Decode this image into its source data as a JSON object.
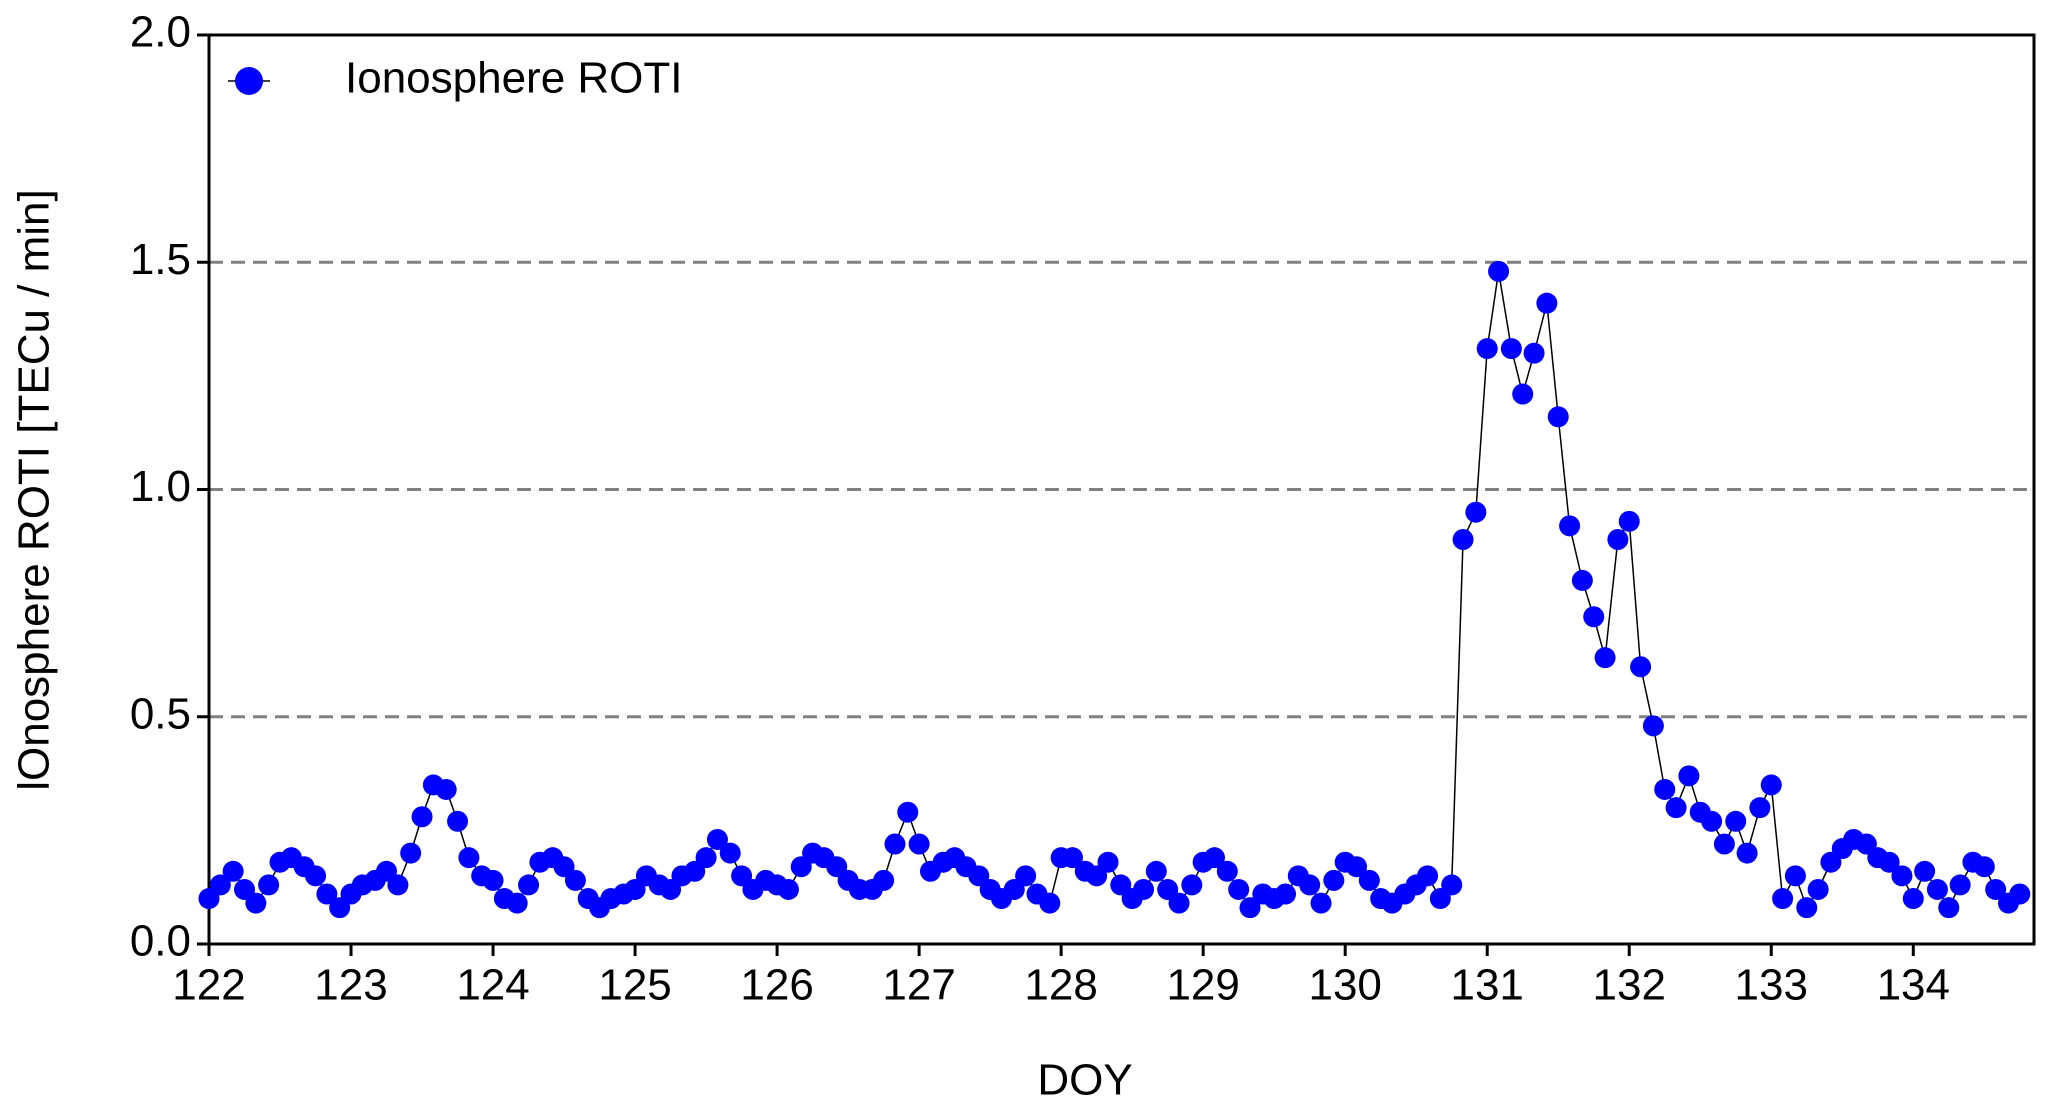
{
  "chart_data": {
    "type": "line",
    "x_label": "DOY",
    "y_label": "lOnosphere ROTI [TECu / min]",
    "xlim": [
      122,
      134.85
    ],
    "ylim": [
      0,
      2.0
    ],
    "xticks": [
      122,
      123,
      124,
      125,
      126,
      127,
      128,
      129,
      130,
      131,
      132,
      133,
      134
    ],
    "yticks": [
      {
        "value": 0,
        "label": "0.0"
      },
      0.5,
      {
        "value": 1,
        "label": "1.0"
      },
      1.5,
      {
        "value": 2,
        "label": "2.0"
      }
    ],
    "grid": true,
    "legend": "upper left",
    "series": [
      {
        "name": "Ionosphere ROTI",
        "color": "#0000ff",
        "x": [
          122.0,
          122.08,
          122.17,
          122.25,
          122.33,
          122.42,
          122.5,
          122.58,
          122.67,
          122.75,
          122.83,
          122.92,
          123.0,
          123.08,
          123.17,
          123.25,
          123.33,
          123.42,
          123.5,
          123.58,
          123.67,
          123.75,
          123.83,
          123.92,
          124.0,
          124.08,
          124.17,
          124.25,
          124.33,
          124.42,
          124.5,
          124.58,
          124.67,
          124.75,
          124.83,
          124.92,
          125.0,
          125.08,
          125.17,
          125.25,
          125.33,
          125.42,
          125.5,
          125.58,
          125.67,
          125.75,
          125.83,
          125.92,
          126.0,
          126.08,
          126.17,
          126.25,
          126.33,
          126.42,
          126.5,
          126.58,
          126.67,
          126.75,
          126.83,
          126.92,
          127.0,
          127.08,
          127.17,
          127.25,
          127.33,
          127.42,
          127.5,
          127.58,
          127.67,
          127.75,
          127.83,
          127.92,
          128.0,
          128.08,
          128.17,
          128.25,
          128.33,
          128.42,
          128.5,
          128.58,
          128.67,
          128.75,
          128.83,
          128.92,
          129.0,
          129.08,
          129.17,
          129.25,
          129.33,
          129.42,
          129.5,
          129.58,
          129.67,
          129.75,
          129.83,
          129.92,
          130.0,
          130.08,
          130.17,
          130.25,
          130.33,
          130.42,
          130.5,
          130.58,
          130.67,
          130.75,
          130.83,
          130.92,
          131.0,
          131.08,
          131.17,
          131.25,
          131.33,
          131.42,
          131.5,
          131.58,
          131.67,
          131.75,
          131.83,
          131.92,
          132.0,
          132.08,
          132.17,
          132.25,
          132.33,
          132.42,
          132.5,
          132.58,
          132.67,
          132.75,
          132.83,
          132.92,
          133.0,
          133.08,
          133.17,
          133.25,
          133.33,
          133.42,
          133.5,
          133.58,
          133.67,
          133.75,
          133.83,
          133.92,
          134.0,
          134.08,
          134.17,
          134.25,
          134.33,
          134.42,
          134.5,
          134.58,
          134.67,
          134.75
        ],
        "values": [
          0.1,
          0.13,
          0.16,
          0.12,
          0.09,
          0.13,
          0.18,
          0.19,
          0.17,
          0.15,
          0.11,
          0.08,
          0.11,
          0.13,
          0.14,
          0.16,
          0.13,
          0.2,
          0.28,
          0.35,
          0.34,
          0.27,
          0.19,
          0.15,
          0.14,
          0.1,
          0.09,
          0.13,
          0.18,
          0.19,
          0.17,
          0.14,
          0.1,
          0.08,
          0.1,
          0.11,
          0.12,
          0.15,
          0.13,
          0.12,
          0.15,
          0.16,
          0.19,
          0.23,
          0.2,
          0.15,
          0.12,
          0.14,
          0.13,
          0.12,
          0.17,
          0.2,
          0.19,
          0.17,
          0.14,
          0.12,
          0.12,
          0.14,
          0.22,
          0.29,
          0.22,
          0.16,
          0.18,
          0.19,
          0.17,
          0.15,
          0.12,
          0.1,
          0.12,
          0.15,
          0.11,
          0.09,
          0.19,
          0.19,
          0.16,
          0.15,
          0.18,
          0.13,
          0.1,
          0.12,
          0.16,
          0.12,
          0.09,
          0.13,
          0.18,
          0.19,
          0.16,
          0.12,
          0.08,
          0.11,
          0.1,
          0.11,
          0.15,
          0.13,
          0.09,
          0.14,
          0.18,
          0.17,
          0.14,
          0.1,
          0.09,
          0.11,
          0.13,
          0.15,
          0.1,
          0.13,
          0.89,
          0.95,
          1.31,
          1.48,
          1.31,
          1.21,
          1.3,
          1.41,
          1.16,
          0.92,
          0.8,
          0.72,
          0.63,
          0.89,
          0.93,
          0.61,
          0.48,
          0.34,
          0.3,
          0.37,
          0.29,
          0.27,
          0.22,
          0.27,
          0.2,
          0.3,
          0.35,
          0.1,
          0.15,
          0.08,
          0.12,
          0.18,
          0.21,
          0.23,
          0.22,
          0.19,
          0.18,
          0.15,
          0.1,
          0.16,
          0.12,
          0.08,
          0.13,
          0.18,
          0.17,
          0.12,
          0.09,
          0.11
        ]
      }
    ]
  }
}
